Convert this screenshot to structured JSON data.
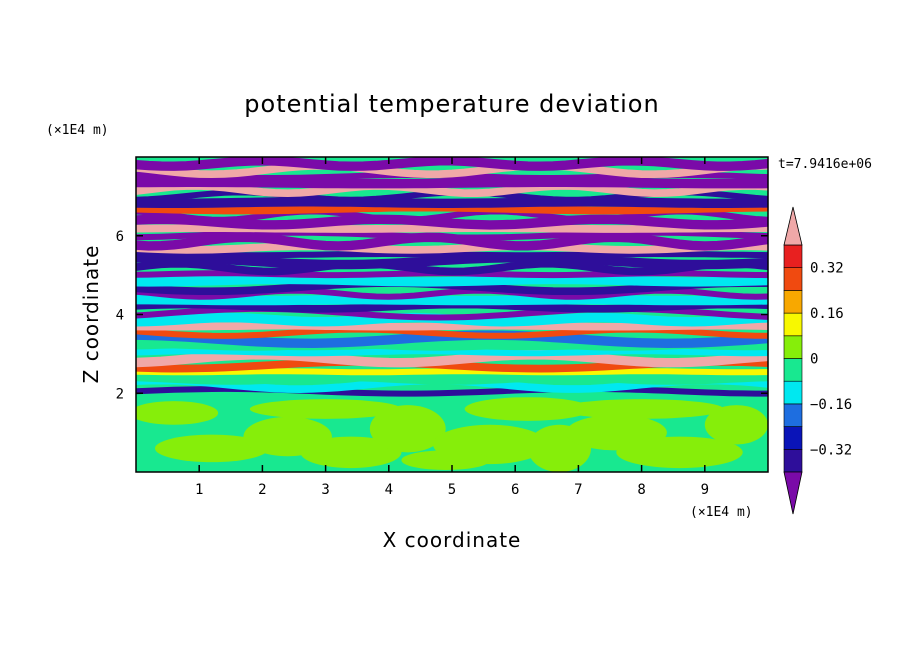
{
  "chart_data": {
    "type": "heatmap",
    "title": "potential temperature deviation",
    "xlabel": "X coordinate",
    "ylabel": "Z coordinate",
    "x_unit": "(×1E4 m)",
    "y_unit": "(×1E4 m)",
    "time_label": "t=7.9416e+06",
    "xlim": [
      0,
      10
    ],
    "ylim": [
      0,
      8
    ],
    "x_ticks": [
      1,
      2,
      3,
      4,
      5,
      6,
      7,
      8,
      9
    ],
    "y_ticks": [
      2,
      4,
      6
    ],
    "x_tick_labels": [
      "1",
      "2",
      "3",
      "4",
      "5",
      "6",
      "7",
      "8",
      "9"
    ],
    "y_tick_labels": [
      "2",
      "4",
      "6"
    ],
    "colorbar": {
      "levels": [
        -0.4,
        -0.32,
        -0.24,
        -0.16,
        -0.08,
        0,
        0.08,
        0.16,
        0.24,
        0.32,
        0.4
      ],
      "colors": [
        "#7a0aa8",
        "#2e0e9a",
        "#0a14b8",
        "#1e6ee0",
        "#00e8f0",
        "#18e890",
        "#86ee0a",
        "#f8f800",
        "#f8a800",
        "#f04a10",
        "#e82020",
        "#f0a8a8"
      ],
      "tick_labels": [
        "0.32",
        "0.16",
        "0",
        "−0.16",
        "−0.32"
      ],
      "tick_values": [
        0.32,
        0.16,
        0,
        -0.16,
        -0.32
      ],
      "extend": "both"
    },
    "regions": [
      {
        "z_range": [
          0,
          2
        ],
        "description": "near-neutral layer, values between 0 and 0.08"
      },
      {
        "z_range": [
          2,
          8
        ],
        "description": "horizontally banded layers alternating strongly negative and strongly positive"
      }
    ]
  }
}
